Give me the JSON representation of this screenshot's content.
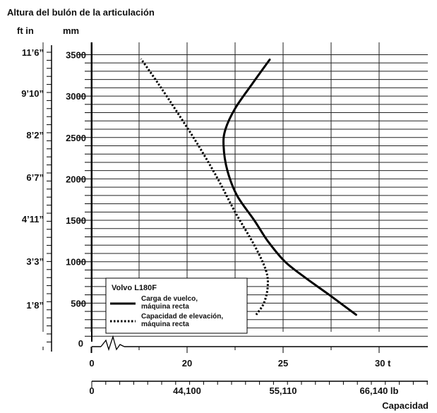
{
  "chart_data": {
    "type": "line",
    "title": "Altura del bulón de la articulación",
    "xlabel": "Capacidad",
    "left_unit_label": "ft in",
    "y_unit_label": "mm",
    "x_primary_unit": "t",
    "ylim": [
      0,
      3500
    ],
    "y_ticks": [
      {
        "mm": 500,
        "imperial": "1’8”"
      },
      {
        "mm": 1000,
        "imperial": "3’3”"
      },
      {
        "mm": 1500,
        "imperial": "4’11”"
      },
      {
        "mm": 2000,
        "imperial": "6’7”"
      },
      {
        "mm": 2500,
        "imperial": "8’2”"
      },
      {
        "mm": 3000,
        "imperial": "9’10”"
      },
      {
        "mm": 3500,
        "imperial": "11’6”"
      }
    ],
    "y_zero_label": "0",
    "x_ticks": [
      {
        "t": 0,
        "label": "0",
        "lb_label": "0"
      },
      {
        "t": 20,
        "label": "20",
        "lb_label": "44,100"
      },
      {
        "t": 25,
        "label": "25",
        "lb_label": "55,110"
      },
      {
        "t": 30,
        "label": "30 t",
        "lb_label": "66,140 lb"
      }
    ],
    "grid": true,
    "legend": {
      "position": "bottom-left",
      "title": "Volvo L180F"
    },
    "series": [
      {
        "name": "Carga de vuelco,\nmáquina recta",
        "style": "solid",
        "color": "#000000",
        "points": [
          {
            "t": 28.8,
            "mm": 360
          },
          {
            "t": 27.4,
            "mm": 600
          },
          {
            "t": 26.2,
            "mm": 800
          },
          {
            "t": 25.1,
            "mm": 1000
          },
          {
            "t": 24.2,
            "mm": 1250
          },
          {
            "t": 23.5,
            "mm": 1500
          },
          {
            "t": 22.6,
            "mm": 1800
          },
          {
            "t": 22.1,
            "mm": 2100
          },
          {
            "t": 21.9,
            "mm": 2400
          },
          {
            "t": 22.0,
            "mm": 2600
          },
          {
            "t": 22.5,
            "mm": 2850
          },
          {
            "t": 23.4,
            "mm": 3150
          },
          {
            "t": 24.3,
            "mm": 3440
          }
        ]
      },
      {
        "name": "Capacidad de elevación,\nmáquina recta",
        "style": "dotted",
        "color": "#000000",
        "points": [
          {
            "t": 23.6,
            "mm": 360
          },
          {
            "t": 24.0,
            "mm": 500
          },
          {
            "t": 24.2,
            "mm": 700
          },
          {
            "t": 24.1,
            "mm": 900
          },
          {
            "t": 23.5,
            "mm": 1200
          },
          {
            "t": 22.5,
            "mm": 1600
          },
          {
            "t": 21.6,
            "mm": 2000
          },
          {
            "t": 20.6,
            "mm": 2400
          },
          {
            "t": 19.5,
            "mm": 2800
          },
          {
            "t": 18.5,
            "mm": 3150
          },
          {
            "t": 17.6,
            "mm": 3450
          }
        ]
      }
    ]
  }
}
